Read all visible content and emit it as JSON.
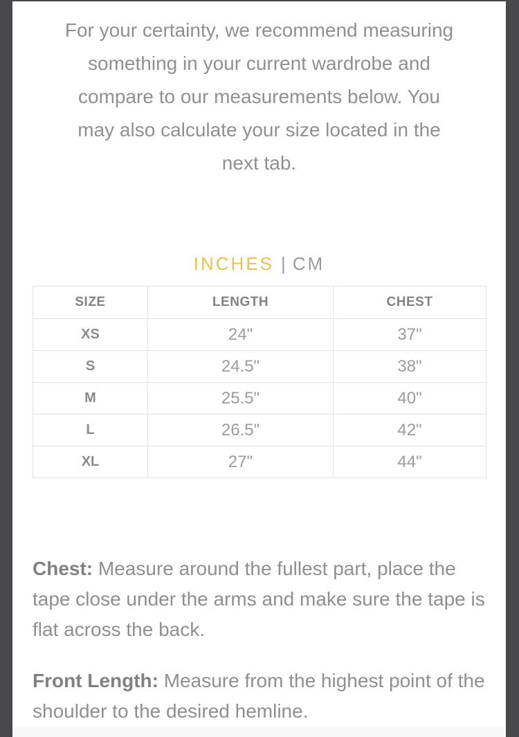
{
  "intro": {
    "lines": [
      "For your certainty, we recommend measuring",
      "something in your current wardrobe and",
      "compare to our measurements below. You",
      "may also calculate your size located in the",
      "next tab."
    ]
  },
  "unit_toggle": {
    "inches_label": "INCHES",
    "separator": "|",
    "cm_label": "CM",
    "active_unit": "INCHES",
    "active_color": "#e9c24b",
    "inactive_color": "#9a9a9a"
  },
  "table": {
    "headers": [
      "SIZE",
      "LENGTH",
      "CHEST"
    ],
    "rows": [
      {
        "size": "XS",
        "length": "24\"",
        "chest": "37\""
      },
      {
        "size": "S",
        "length": "24.5\"",
        "chest": "38\""
      },
      {
        "size": "M",
        "length": "25.5\"",
        "chest": "40\""
      },
      {
        "size": "L",
        "length": "26.5\"",
        "chest": "42\""
      },
      {
        "size": "XL",
        "length": "27\"",
        "chest": "44\""
      }
    ]
  },
  "notes": {
    "chest": {
      "label": "Chest:",
      "text": " Measure around the fullest part, place the tape close under the arms and make sure the tape is flat across the back."
    },
    "front_length": {
      "label": "Front Length:",
      "text": " Measure from the highest point of the shoulder to the desired hemline."
    }
  },
  "frame": {
    "border_color": "#48484a",
    "background_color": "#ffffff"
  }
}
